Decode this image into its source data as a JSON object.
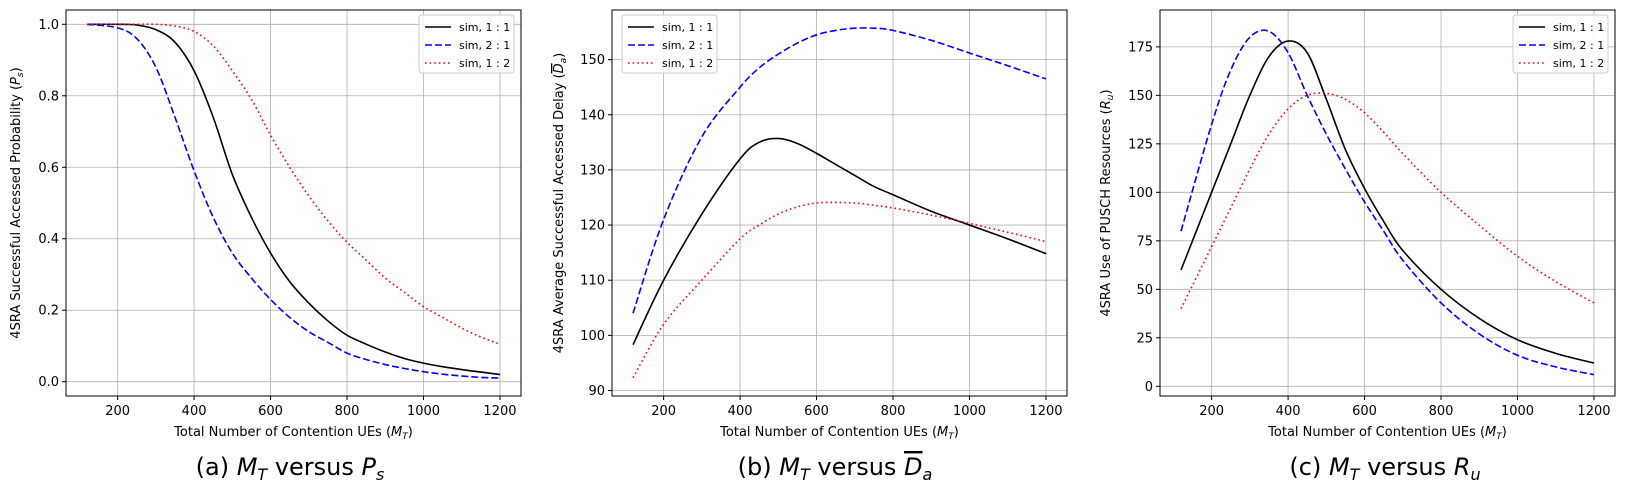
{
  "chart_data": [
    {
      "type": "line",
      "caption": "(a) M_T versus P_s",
      "caption_parts": {
        "prefix": "(a) ",
        "var1": "M",
        "sub1": "T",
        "mid": " versus ",
        "var2": "P",
        "sub2": "s"
      },
      "xlabel": "Total Number of Contention UEs",
      "xlabel_sym": {
        "var": "M",
        "sub": "T"
      },
      "ylabel": "4SRA Successful Accessed Probability",
      "ylabel_sym": {
        "var": "P",
        "sub": "s",
        "overline": false
      },
      "xlim": [
        65,
        1255
      ],
      "ylim": [
        -0.04,
        1.04
      ],
      "xticks": [
        200,
        400,
        600,
        800,
        1000,
        1200
      ],
      "yticks": [
        0.0,
        0.2,
        0.4,
        0.6,
        0.8,
        1.0
      ],
      "ytick_labels": [
        "0.0",
        "0.2",
        "0.4",
        "0.6",
        "0.8",
        "1.0"
      ],
      "grid": true,
      "legend_position": "top-right",
      "x": [
        120,
        200,
        250,
        300,
        350,
        400,
        450,
        500,
        550,
        600,
        650,
        700,
        750,
        800,
        850,
        900,
        950,
        1000,
        1050,
        1100,
        1150,
        1200
      ],
      "series": [
        {
          "name": "sim, 1 : 1",
          "color": "#000000",
          "dash": "solid",
          "values": [
            1.0,
            1.0,
            0.998,
            0.985,
            0.95,
            0.87,
            0.74,
            0.58,
            0.46,
            0.36,
            0.28,
            0.22,
            0.17,
            0.13,
            0.105,
            0.083,
            0.065,
            0.052,
            0.042,
            0.034,
            0.027,
            0.02
          ]
        },
        {
          "name": "sim, 2 : 1",
          "color": "#0000ff",
          "dash": "dashed",
          "values": [
            1.0,
            0.99,
            0.96,
            0.88,
            0.74,
            0.59,
            0.46,
            0.36,
            0.29,
            0.23,
            0.18,
            0.14,
            0.11,
            0.08,
            0.062,
            0.048,
            0.037,
            0.028,
            0.021,
            0.016,
            0.012,
            0.01
          ]
        },
        {
          "name": "sim, 1 : 2",
          "color": "#ff0000",
          "dash": "dotted",
          "values": [
            1.0,
            1.0,
            1.0,
            1.0,
            0.995,
            0.98,
            0.94,
            0.87,
            0.79,
            0.69,
            0.6,
            0.52,
            0.45,
            0.39,
            0.34,
            0.29,
            0.25,
            0.21,
            0.18,
            0.15,
            0.125,
            0.105
          ]
        }
      ]
    },
    {
      "type": "line",
      "caption": "(b) M_T versus D_a (overlined)",
      "caption_parts": {
        "prefix": "(b) ",
        "var1": "M",
        "sub1": "T",
        "mid": " versus ",
        "var2": "D",
        "sub2": "a",
        "overline2": true
      },
      "xlabel": "Total Number of Contention UEs",
      "xlabel_sym": {
        "var": "M",
        "sub": "T"
      },
      "ylabel": "4SRA Average Successful Accessed Delay",
      "ylabel_sym": {
        "var": "D",
        "sub": "a",
        "overline": true
      },
      "xlim": [
        65,
        1255
      ],
      "ylim": [
        89,
        159
      ],
      "xticks": [
        200,
        400,
        600,
        800,
        1000,
        1200
      ],
      "yticks": [
        90,
        100,
        110,
        120,
        130,
        140,
        150
      ],
      "ytick_labels": [
        "90",
        "100",
        "110",
        "120",
        "130",
        "140",
        "150"
      ],
      "grid": true,
      "legend_position": "top-left",
      "x": [
        120,
        200,
        300,
        400,
        450,
        500,
        550,
        600,
        650,
        700,
        750,
        800,
        900,
        1000,
        1100,
        1200
      ],
      "series": [
        {
          "name": "sim, 1 : 1",
          "color": "#000000",
          "dash": "solid",
          "values": [
            98.3,
            110,
            122,
            132,
            135,
            135.7,
            134.8,
            133,
            131,
            129,
            127,
            125.5,
            122.5,
            120,
            117.5,
            114.8
          ]
        },
        {
          "name": "sim, 2 : 1",
          "color": "#0000ff",
          "dash": "dashed",
          "values": [
            104,
            121,
            136,
            145,
            148.5,
            151,
            153,
            154.5,
            155.3,
            155.7,
            155.7,
            155.3,
            153.5,
            151.2,
            148.9,
            146.5
          ]
        },
        {
          "name": "sim, 1 : 2",
          "color": "#ff0000",
          "dash": "dotted",
          "values": [
            92.3,
            102,
            110,
            117.5,
            120,
            122,
            123.3,
            124,
            124.1,
            124,
            123.6,
            123.1,
            121.8,
            120.3,
            118.7,
            117
          ]
        }
      ]
    },
    {
      "type": "line",
      "caption": "(c) M_T versus R_u",
      "caption_parts": {
        "prefix": "(c) ",
        "var1": "M",
        "sub1": "T",
        "mid": " versus ",
        "var2": "R",
        "sub2": "u"
      },
      "xlabel": "Total Number of Contention UEs",
      "xlabel_sym": {
        "var": "M",
        "sub": "T"
      },
      "ylabel": "4SRA Use of PUSCH Resources",
      "ylabel_sym": {
        "var": "R",
        "sub": "u",
        "overline": false
      },
      "xlim": [
        65,
        1255
      ],
      "ylim": [
        -5,
        194
      ],
      "xticks": [
        200,
        400,
        600,
        800,
        1000,
        1200
      ],
      "yticks": [
        0,
        25,
        50,
        75,
        100,
        125,
        150,
        175
      ],
      "ytick_labels": [
        "0",
        "25",
        "50",
        "75",
        "100",
        "125",
        "150",
        "175"
      ],
      "grid": true,
      "legend_position": "top-right",
      "x": [
        120,
        200,
        250,
        300,
        350,
        400,
        450,
        500,
        550,
        600,
        650,
        700,
        800,
        900,
        1000,
        1100,
        1200
      ],
      "series": [
        {
          "name": "sim, 1 : 1",
          "color": "#000000",
          "dash": "solid",
          "values": [
            60,
            100,
            125,
            150,
            170,
            178,
            172,
            148,
            122,
            102,
            85,
            70,
            50,
            35,
            24,
            17,
            12
          ]
        },
        {
          "name": "sim, 2 : 1",
          "color": "#0000ff",
          "dash": "dashed",
          "values": [
            80,
            135,
            163,
            180,
            183,
            172,
            150,
            130,
            112,
            95,
            80,
            65,
            43,
            27,
            16,
            10,
            6
          ]
        },
        {
          "name": "sim, 1 : 2",
          "color": "#ff0000",
          "dash": "dotted",
          "values": [
            40,
            72,
            92,
            112,
            130,
            143,
            150,
            151,
            148,
            141,
            131,
            120,
            100,
            83,
            67,
            54,
            43
          ]
        }
      ]
    }
  ]
}
